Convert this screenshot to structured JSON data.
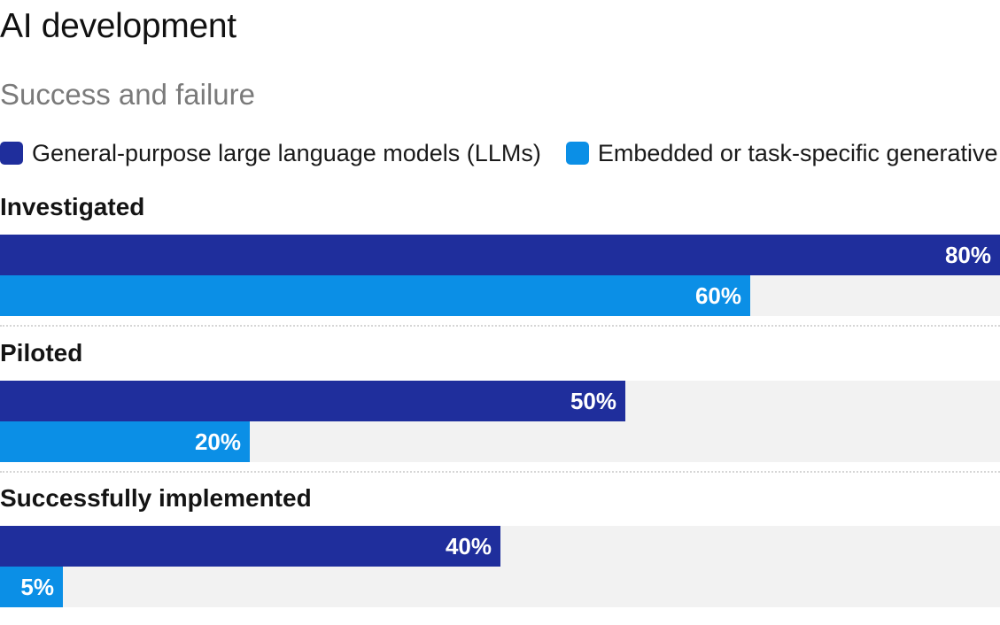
{
  "chart_data": {
    "type": "bar",
    "orientation": "horizontal",
    "title": "AI development",
    "subtitle": "Success and failure",
    "categories": [
      "Investigated",
      "Piloted",
      "Successfully implemented"
    ],
    "series": [
      {
        "name": "General-purpose large language models (LLMs)",
        "color": "#1f2e9c",
        "values": [
          80,
          50,
          40
        ],
        "labels": [
          "80%",
          "50%",
          "40%"
        ]
      },
      {
        "name": "Embedded or task-specific generative AI",
        "color": "#0b8fe6",
        "values": [
          60,
          20,
          5
        ],
        "labels": [
          "60%",
          "20%",
          "5%"
        ]
      }
    ],
    "xlim": [
      0,
      80
    ],
    "unit": "%",
    "legend_position": "top-left",
    "grid": false
  }
}
